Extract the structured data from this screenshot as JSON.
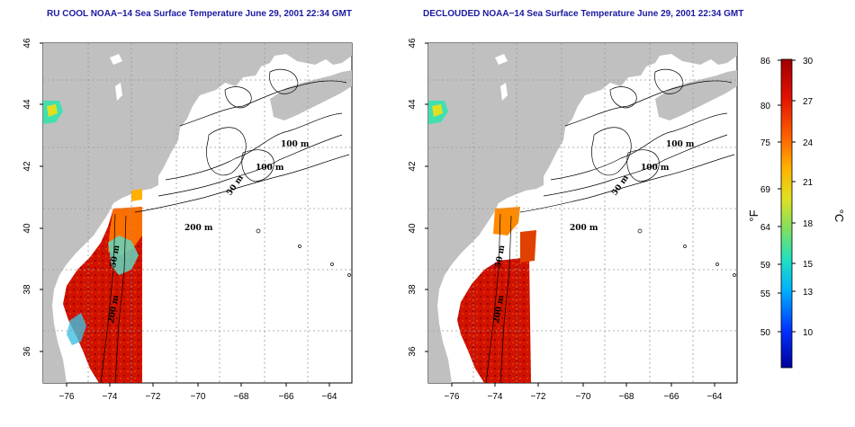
{
  "panels": [
    {
      "id": "left",
      "title": "RU COOL NOAA−14 Sea Surface Temperature June 29, 2001 22:34 GMT",
      "contour_labels": [
        "100 m",
        "100 m",
        "50 m",
        "200 m",
        "50 m",
        "200 m"
      ],
      "data_coverage": "cloud-filtered SST swath",
      "clouds_removed": false
    },
    {
      "id": "right",
      "title": "DECLOUDED NOAA−14 Sea Surface Temperature June 29, 2001 22:34 GMT",
      "contour_labels": [
        "100 m",
        "100 m",
        "50 m",
        "200 m",
        "50 m",
        "200 m"
      ],
      "data_coverage": "declouded SST swath",
      "clouds_removed": true
    }
  ],
  "map": {
    "lon_ticks": [
      "−76",
      "−74",
      "−72",
      "−70",
      "−68",
      "−66",
      "−64"
    ],
    "lat_ticks": [
      "36",
      "38",
      "40",
      "42",
      "44",
      "46"
    ],
    "lon_range": [
      -77.2,
      -63
    ],
    "lat_range": [
      35,
      46
    ],
    "land_color": "#c0c0c0",
    "ocean_color": "#ffffff",
    "grid": "dotted"
  },
  "colorbar": {
    "fahrenheit_label": "°F",
    "celsius_label": "°C",
    "fahrenheit_ticks": [
      "86",
      "80",
      "75",
      "69",
      "64",
      "59",
      "55",
      "50"
    ],
    "celsius_ticks": [
      "30",
      "27",
      "24",
      "21",
      "18",
      "15",
      "13",
      "10"
    ],
    "colors": [
      "#00009a",
      "#0030ff",
      "#00b0ff",
      "#20e0c0",
      "#80e060",
      "#e0e020",
      "#ffb000",
      "#ff6000",
      "#e01000",
      "#a00000"
    ]
  }
}
